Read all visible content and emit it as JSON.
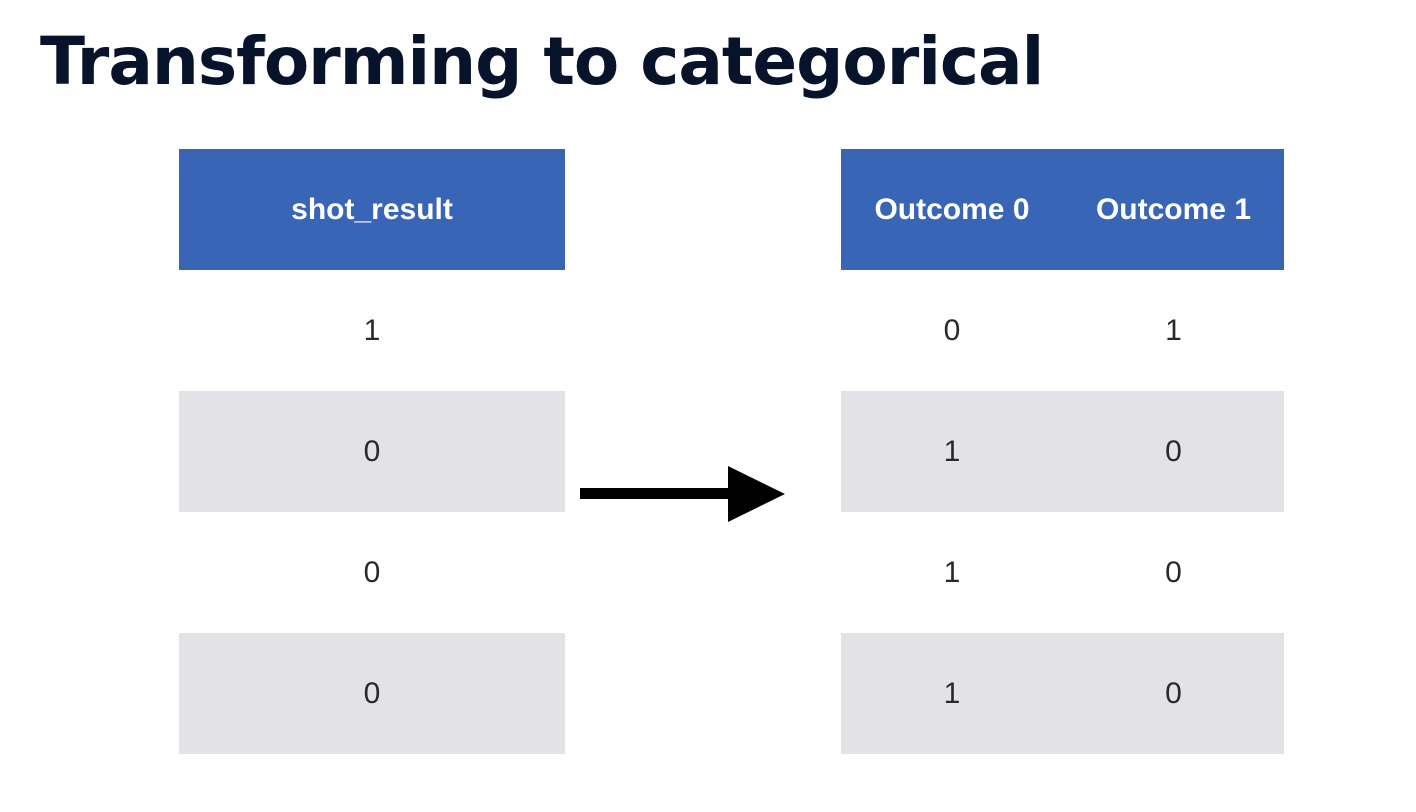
{
  "title": "Transforming to categorical",
  "left_table": {
    "header": "shot_result",
    "rows": [
      "1",
      "0",
      "0",
      "0"
    ]
  },
  "right_table": {
    "headers": [
      "Outcome 0",
      "Outcome 1"
    ],
    "rows": [
      [
        "0",
        "1"
      ],
      [
        "1",
        "0"
      ],
      [
        "1",
        "0"
      ],
      [
        "1",
        "0"
      ]
    ]
  },
  "colors": {
    "header_bg": "#3865b6",
    "stripe_bg": "#e3e3e7",
    "title": "#06132b",
    "arrow": "#000000"
  },
  "icons": {
    "transform_arrow": "right-arrow-icon"
  }
}
